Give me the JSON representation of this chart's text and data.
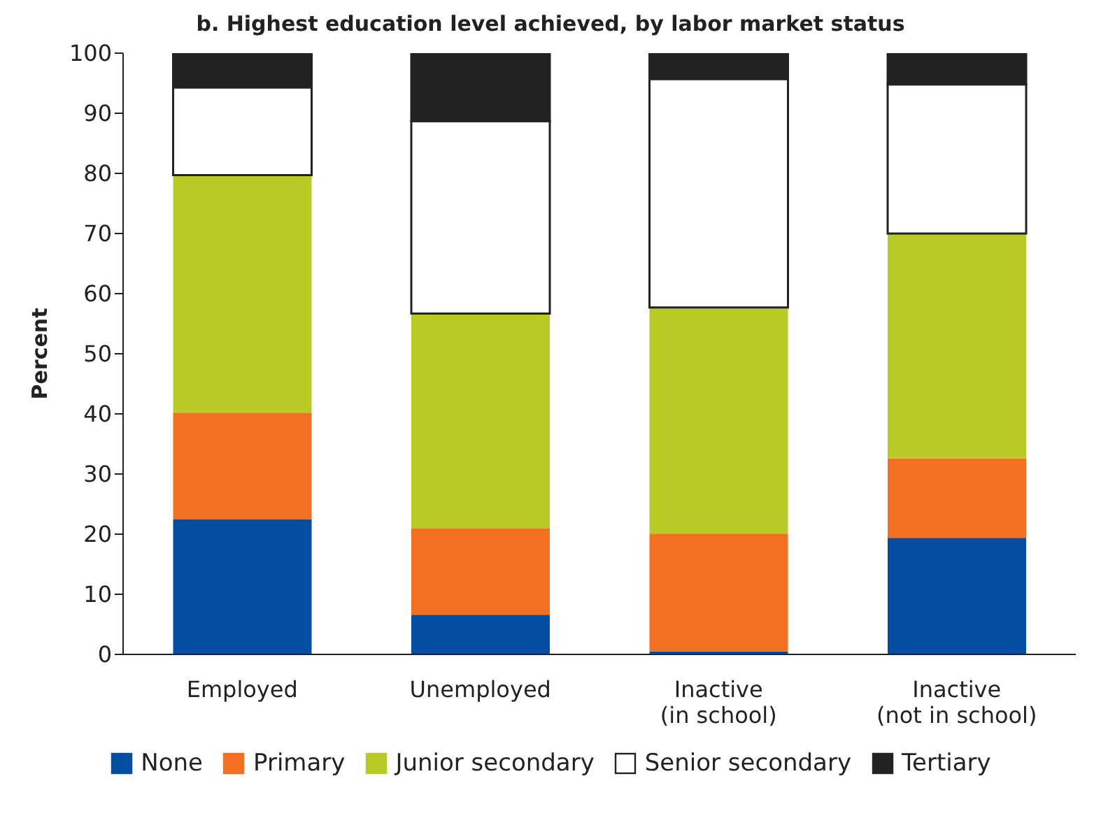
{
  "chart_data": {
    "type": "bar",
    "stacked": true,
    "title": "b. Highest education level achieved, by labor market status",
    "ylabel": "Percent",
    "categories": [
      "Employed",
      "Unemployed",
      "Inactive\n(in school)",
      "Inactive\n(not in school)"
    ],
    "series": [
      {
        "name": "None",
        "color": "#034ea2",
        "values": [
          22.5,
          6.6,
          0.5,
          19.4
        ]
      },
      {
        "name": "Primary",
        "color": "#f37021",
        "values": [
          17.7,
          14.4,
          19.6,
          13.2
        ]
      },
      {
        "name": "Junior secondary",
        "color": "#b9ca26",
        "values": [
          39.5,
          35.7,
          37.6,
          37.4
        ]
      },
      {
        "name": "Senior secondary",
        "color": "#ffffff",
        "values": [
          14.6,
          32.0,
          38.0,
          24.8
        ]
      },
      {
        "name": "Tertiary",
        "color": "#222222",
        "values": [
          5.7,
          11.3,
          4.3,
          5.2
        ]
      }
    ],
    "ylim": [
      0,
      100
    ],
    "yticks": [
      0,
      10,
      20,
      30,
      40,
      50,
      60,
      70,
      80,
      90,
      100
    ],
    "grid": false,
    "legend": "bottom"
  }
}
